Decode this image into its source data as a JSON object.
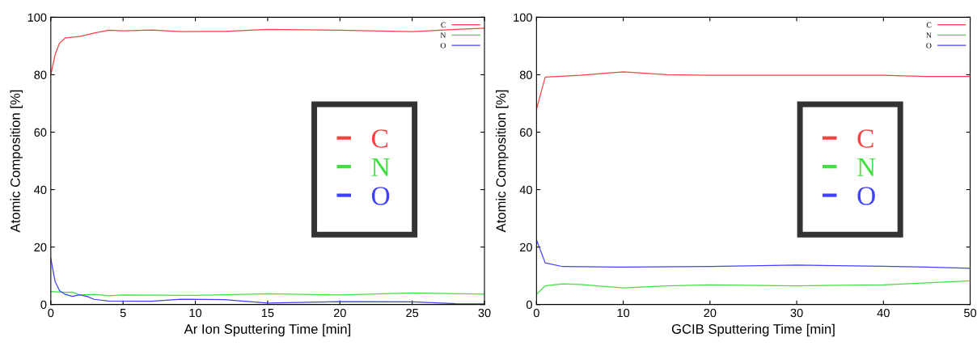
{
  "chart_data": [
    {
      "type": "line",
      "xlabel": "Ar Ion Sputtering Time [min]",
      "ylabel": "Atomic Composition [%]",
      "xlim": [
        0,
        30
      ],
      "xticks": [
        0,
        5,
        10,
        15,
        20,
        25,
        30
      ],
      "ylim": [
        0,
        100
      ],
      "yticks": [
        0,
        20,
        40,
        60,
        80,
        100
      ],
      "grid": false,
      "legend": "right",
      "series": [
        {
          "name": "C",
          "color": "#ff4040",
          "x": [
            0,
            0.3,
            0.6,
            1,
            2,
            3,
            4,
            5,
            7,
            9,
            12,
            15,
            20,
            25,
            28,
            30
          ],
          "values": [
            80,
            87,
            91,
            92.8,
            93.3,
            94.5,
            95.5,
            95.3,
            95.6,
            95,
            95.1,
            95.8,
            95.5,
            95,
            95.8,
            96.2
          ]
        },
        {
          "name": "N",
          "color": "#40e040",
          "x": [
            0,
            1,
            1.5,
            2,
            3,
            4,
            5,
            10,
            15,
            20,
            25,
            30
          ],
          "values": [
            4.5,
            4.2,
            4.3,
            3.3,
            3.5,
            3,
            3.3,
            3.2,
            3.7,
            3.3,
            4,
            3.6
          ]
        },
        {
          "name": "O",
          "color": "#4040ff",
          "x": [
            0,
            0.3,
            0.6,
            1,
            1.5,
            2,
            2.5,
            3,
            4,
            7,
            9,
            12,
            15,
            20,
            25,
            28,
            30
          ],
          "values": [
            16,
            8,
            4.8,
            3.5,
            2.8,
            3.4,
            2.8,
            1.8,
            1.2,
            1.1,
            1.8,
            1.7,
            0.5,
            1,
            0.9,
            0.3,
            0.2
          ]
        }
      ]
    },
    {
      "type": "line",
      "xlabel": "GCIB Sputtering Time [min]",
      "ylabel": "Atomic Composition [%]",
      "xlim": [
        0,
        50
      ],
      "xticks": [
        0,
        10,
        20,
        30,
        40,
        50
      ],
      "ylim": [
        0,
        100
      ],
      "yticks": [
        0,
        20,
        40,
        60,
        80,
        100
      ],
      "grid": false,
      "legend": "right",
      "series": [
        {
          "name": "C",
          "color": "#ff4040",
          "x": [
            0,
            1,
            5,
            10,
            15,
            20,
            30,
            40,
            45,
            50
          ],
          "values": [
            68,
            79.2,
            79.8,
            81,
            80,
            79.8,
            79.8,
            79.8,
            79.4,
            79.4
          ]
        },
        {
          "name": "N",
          "color": "#40e040",
          "x": [
            0,
            1,
            3,
            5,
            10,
            15,
            20,
            30,
            40,
            45,
            50
          ],
          "values": [
            3.5,
            6.5,
            7.2,
            7,
            5.8,
            6.5,
            6.8,
            6.5,
            6.8,
            7.5,
            8.2
          ]
        },
        {
          "name": "O",
          "color": "#4040ff",
          "x": [
            0,
            1,
            3,
            10,
            20,
            30,
            40,
            45,
            50
          ],
          "values": [
            22.5,
            14.5,
            13.2,
            13,
            13.2,
            13.7,
            13.3,
            13,
            12.6
          ]
        }
      ]
    }
  ]
}
